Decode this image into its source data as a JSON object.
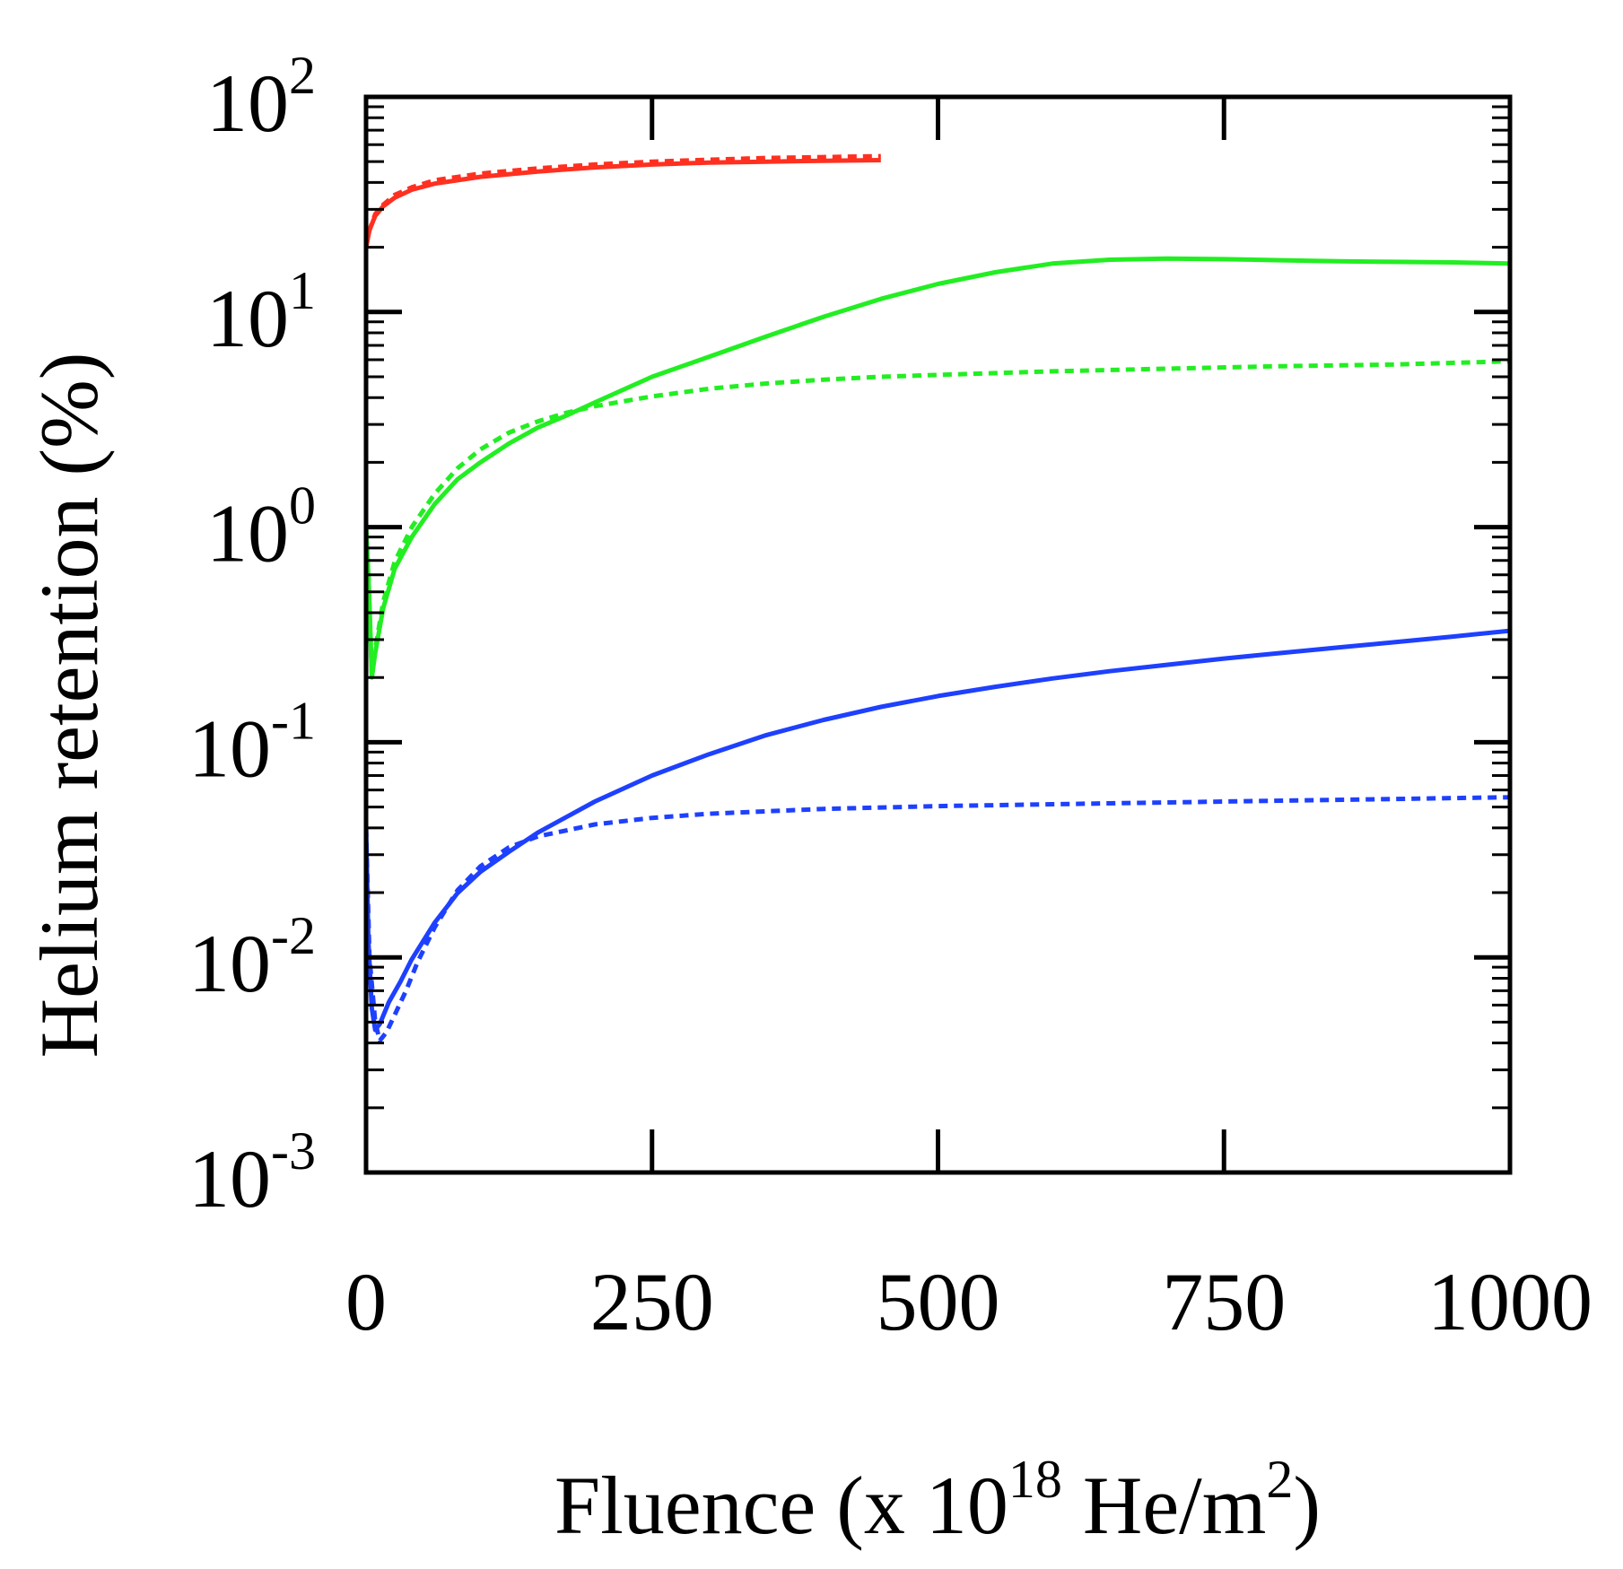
{
  "chart_data": {
    "type": "line",
    "title": "",
    "xlabel": {
      "main": "Fluence (x 10",
      "exp1": "18",
      "mid": " He/m",
      "exp2": "2",
      "end": ")"
    },
    "ylabel": "Helium retention (%)",
    "xlim": [
      0,
      1000
    ],
    "ylim": [
      0.001,
      100
    ],
    "yscale": "log",
    "grid": false,
    "x_ticks": [
      {
        "value": 0,
        "label": "0"
      },
      {
        "value": 250,
        "label": "250"
      },
      {
        "value": 500,
        "label": "500"
      },
      {
        "value": 750,
        "label": "750"
      },
      {
        "value": 1000,
        "label": "1000"
      }
    ],
    "y_ticks": [
      {
        "value": 0.001,
        "base": "10",
        "exp": "-3"
      },
      {
        "value": 0.01,
        "base": "10",
        "exp": "-2"
      },
      {
        "value": 0.1,
        "base": "10",
        "exp": "-1"
      },
      {
        "value": 1,
        "base": "10",
        "exp": "0"
      },
      {
        "value": 10,
        "base": "10",
        "exp": "1"
      },
      {
        "value": 100,
        "base": "10",
        "exp": "2"
      }
    ],
    "series": [
      {
        "name": "red-solid",
        "color": "#ff3020",
        "dash": false,
        "points": [
          [
            0,
            20
          ],
          [
            3,
            24
          ],
          [
            8,
            28
          ],
          [
            15,
            31
          ],
          [
            25,
            34
          ],
          [
            40,
            37
          ],
          [
            60,
            39.5
          ],
          [
            100,
            42.5
          ],
          [
            150,
            45
          ],
          [
            200,
            47
          ],
          [
            250,
            48.5
          ],
          [
            300,
            49.5
          ],
          [
            350,
            50
          ],
          [
            400,
            50.5
          ],
          [
            450,
            50.8
          ]
        ]
      },
      {
        "name": "red-dotted",
        "color": "#ff3020",
        "dash": true,
        "points": [
          [
            0,
            20
          ],
          [
            3,
            24
          ],
          [
            8,
            28.5
          ],
          [
            15,
            31.5
          ],
          [
            25,
            35
          ],
          [
            40,
            38
          ],
          [
            60,
            41
          ],
          [
            100,
            44
          ],
          [
            150,
            46.5
          ],
          [
            200,
            48.5
          ],
          [
            250,
            50
          ],
          [
            300,
            51
          ],
          [
            350,
            52
          ],
          [
            400,
            52.5
          ],
          [
            450,
            53
          ]
        ]
      },
      {
        "name": "green-solid",
        "color": "#22ee22",
        "dash": false,
        "points": [
          [
            0,
            1.0
          ],
          [
            2,
            0.6
          ],
          [
            4,
            0.3
          ],
          [
            5,
            0.2
          ],
          [
            8,
            0.26
          ],
          [
            15,
            0.42
          ],
          [
            25,
            0.64
          ],
          [
            40,
            0.9
          ],
          [
            60,
            1.28
          ],
          [
            80,
            1.67
          ],
          [
            100,
            2.0
          ],
          [
            125,
            2.45
          ],
          [
            150,
            2.9
          ],
          [
            175,
            3.3
          ],
          [
            200,
            3.8
          ],
          [
            250,
            5.0
          ],
          [
            300,
            6.2
          ],
          [
            350,
            7.7
          ],
          [
            400,
            9.5
          ],
          [
            450,
            11.5
          ],
          [
            500,
            13.5
          ],
          [
            550,
            15.3
          ],
          [
            600,
            16.8
          ],
          [
            650,
            17.5
          ],
          [
            700,
            17.7
          ],
          [
            750,
            17.6
          ],
          [
            800,
            17.4
          ],
          [
            850,
            17.2
          ],
          [
            900,
            17.1
          ],
          [
            950,
            17.0
          ],
          [
            1000,
            16.8
          ]
        ]
      },
      {
        "name": "green-dotted",
        "color": "#22ee22",
        "dash": true,
        "points": [
          [
            0,
            1.0
          ],
          [
            2,
            0.6
          ],
          [
            4,
            0.3
          ],
          [
            5,
            0.2
          ],
          [
            8,
            0.27
          ],
          [
            15,
            0.45
          ],
          [
            25,
            0.69
          ],
          [
            40,
            1.0
          ],
          [
            60,
            1.43
          ],
          [
            80,
            1.88
          ],
          [
            100,
            2.3
          ],
          [
            125,
            2.75
          ],
          [
            150,
            3.1
          ],
          [
            175,
            3.4
          ],
          [
            200,
            3.65
          ],
          [
            250,
            4.05
          ],
          [
            300,
            4.4
          ],
          [
            350,
            4.65
          ],
          [
            400,
            4.85
          ],
          [
            450,
            5.0
          ],
          [
            500,
            5.1
          ],
          [
            600,
            5.3
          ],
          [
            700,
            5.45
          ],
          [
            800,
            5.6
          ],
          [
            900,
            5.7
          ],
          [
            1000,
            5.9
          ]
        ]
      },
      {
        "name": "blue-solid",
        "color": "#1e40ff",
        "dash": false,
        "points": [
          [
            0,
            0.04
          ],
          [
            2,
            0.012
          ],
          [
            5,
            0.0058
          ],
          [
            8,
            0.0046
          ],
          [
            12,
            0.0049
          ],
          [
            20,
            0.0062
          ],
          [
            30,
            0.0077
          ],
          [
            40,
            0.0098
          ],
          [
            60,
            0.0145
          ],
          [
            80,
            0.0199
          ],
          [
            100,
            0.025
          ],
          [
            125,
            0.031
          ],
          [
            150,
            0.038
          ],
          [
            200,
            0.053
          ],
          [
            250,
            0.07
          ],
          [
            300,
            0.088
          ],
          [
            350,
            0.108
          ],
          [
            400,
            0.127
          ],
          [
            450,
            0.146
          ],
          [
            500,
            0.164
          ],
          [
            550,
            0.181
          ],
          [
            600,
            0.198
          ],
          [
            650,
            0.214
          ],
          [
            700,
            0.229
          ],
          [
            750,
            0.245
          ],
          [
            800,
            0.26
          ],
          [
            850,
            0.276
          ],
          [
            900,
            0.292
          ],
          [
            950,
            0.31
          ],
          [
            1000,
            0.33
          ]
        ]
      },
      {
        "name": "blue-dotted",
        "color": "#1e40ff",
        "dash": true,
        "points": [
          [
            0,
            0.04
          ],
          [
            3,
            0.01
          ],
          [
            8,
            0.005
          ],
          [
            12,
            0.0041
          ],
          [
            18,
            0.0045
          ],
          [
            25,
            0.0054
          ],
          [
            35,
            0.007
          ],
          [
            45,
            0.0095
          ],
          [
            60,
            0.0138
          ],
          [
            80,
            0.0205
          ],
          [
            100,
            0.0265
          ],
          [
            125,
            0.0325
          ],
          [
            150,
            0.0365
          ],
          [
            200,
            0.0415
          ],
          [
            250,
            0.0445
          ],
          [
            300,
            0.0465
          ],
          [
            400,
            0.049
          ],
          [
            500,
            0.0505
          ],
          [
            600,
            0.0515
          ],
          [
            700,
            0.0525
          ],
          [
            800,
            0.0535
          ],
          [
            900,
            0.0545
          ],
          [
            1000,
            0.0555
          ]
        ]
      }
    ]
  }
}
